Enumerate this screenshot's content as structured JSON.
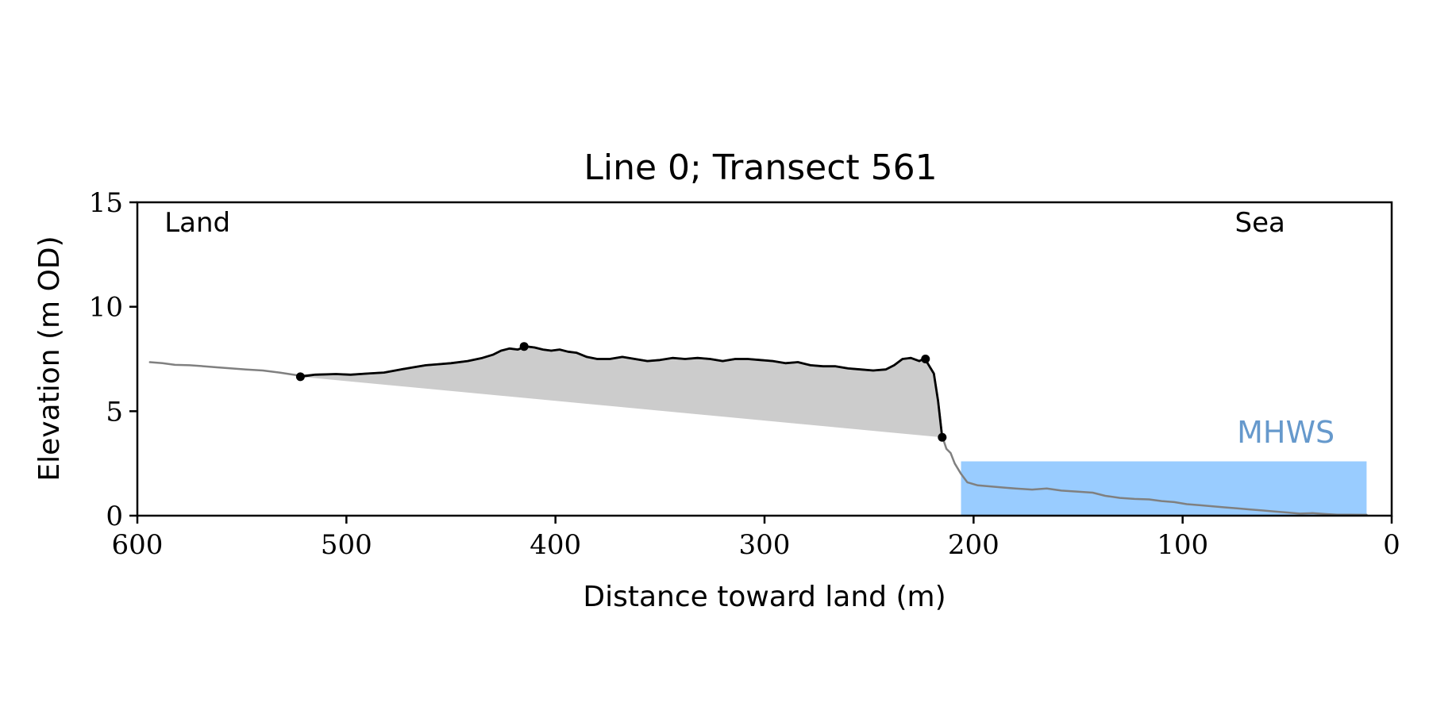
{
  "chart_data": {
    "type": "line",
    "title": "Line 0; Transect 561",
    "xlabel": "Distance toward land (m)",
    "ylabel": "Elevation (m OD)",
    "xlim": [
      600,
      0
    ],
    "ylim": [
      0,
      15
    ],
    "x_ticks": [
      600,
      500,
      400,
      300,
      200,
      100,
      0
    ],
    "y_ticks": [
      0,
      5,
      10,
      15
    ],
    "grid": false,
    "annotations": [
      {
        "text": "Land",
        "x": 587,
        "y": 13.6
      },
      {
        "text": "Sea",
        "x": 75,
        "y": 13.6
      },
      {
        "text": "MHWS",
        "x": 74,
        "y": 3.5
      }
    ],
    "mhws": {
      "label": "MHWS",
      "level": 2.6,
      "x_start": 206,
      "x_end": 12,
      "color": "#99ccff",
      "label_color": "#6699cc"
    },
    "series": [
      {
        "role": "full-profile",
        "color": "#808080",
        "x": [
          594,
          588,
          582,
          575,
          568,
          562,
          555,
          548,
          540,
          532,
          522,
          515,
          505,
          498,
          490,
          482,
          474,
          468,
          462,
          456,
          450,
          442,
          435,
          430,
          426,
          422,
          418,
          414,
          410,
          406,
          402,
          398,
          394,
          390,
          385,
          380,
          374,
          368,
          362,
          356,
          350,
          344,
          338,
          332,
          326,
          320,
          314,
          308,
          302,
          296,
          290,
          284,
          278,
          272,
          266,
          260,
          254,
          248,
          242,
          238,
          234,
          230,
          226,
          224,
          222,
          219,
          217,
          215,
          213,
          211,
          209,
          206,
          203,
          198,
          192,
          186,
          180,
          172,
          165,
          158,
          150,
          143,
          137,
          130,
          123,
          116,
          110,
          104,
          98,
          92,
          86,
          80,
          74,
          68,
          62,
          56,
          50,
          44,
          38,
          32,
          26,
          20,
          14,
          12
        ],
        "y": [
          7.35,
          7.3,
          7.22,
          7.2,
          7.15,
          7.1,
          7.05,
          7.0,
          6.95,
          6.85,
          6.7,
          6.75,
          6.78,
          6.75,
          6.8,
          6.85,
          7.0,
          7.1,
          7.2,
          7.25,
          7.3,
          7.4,
          7.55,
          7.7,
          7.9,
          8.0,
          7.95,
          8.1,
          8.05,
          7.95,
          7.9,
          7.95,
          7.85,
          7.8,
          7.6,
          7.5,
          7.5,
          7.6,
          7.5,
          7.4,
          7.45,
          7.55,
          7.5,
          7.55,
          7.5,
          7.4,
          7.5,
          7.5,
          7.45,
          7.4,
          7.3,
          7.35,
          7.2,
          7.15,
          7.15,
          7.05,
          7.0,
          6.95,
          7.0,
          7.2,
          7.5,
          7.55,
          7.4,
          7.5,
          7.3,
          6.8,
          5.5,
          3.8,
          3.2,
          3.0,
          2.5,
          2.0,
          1.6,
          1.45,
          1.4,
          1.35,
          1.3,
          1.25,
          1.3,
          1.2,
          1.15,
          1.1,
          0.95,
          0.85,
          0.8,
          0.78,
          0.7,
          0.65,
          0.55,
          0.5,
          0.45,
          0.4,
          0.35,
          0.3,
          0.25,
          0.2,
          0.15,
          0.1,
          0.12,
          0.08,
          0.05,
          0.05,
          0.04,
          0.04
        ]
      },
      {
        "role": "selected-profile",
        "color": "#000000",
        "x": [
          522,
          515,
          505,
          498,
          490,
          482,
          474,
          468,
          462,
          456,
          450,
          442,
          435,
          430,
          426,
          422,
          418,
          414,
          410,
          406,
          402,
          398,
          394,
          390,
          385,
          380,
          374,
          368,
          362,
          356,
          350,
          344,
          338,
          332,
          326,
          320,
          314,
          308,
          302,
          296,
          290,
          284,
          278,
          272,
          266,
          260,
          254,
          248,
          242,
          238,
          234,
          230,
          226,
          224,
          222,
          219,
          217,
          215
        ],
        "y": [
          6.65,
          6.75,
          6.78,
          6.75,
          6.8,
          6.85,
          7.0,
          7.1,
          7.2,
          7.25,
          7.3,
          7.4,
          7.55,
          7.7,
          7.9,
          8.0,
          7.95,
          8.1,
          8.05,
          7.95,
          7.9,
          7.95,
          7.85,
          7.8,
          7.6,
          7.5,
          7.5,
          7.6,
          7.5,
          7.4,
          7.45,
          7.55,
          7.5,
          7.55,
          7.5,
          7.4,
          7.5,
          7.5,
          7.45,
          7.4,
          7.3,
          7.35,
          7.2,
          7.15,
          7.15,
          7.05,
          7.0,
          6.95,
          7.0,
          7.2,
          7.5,
          7.55,
          7.4,
          7.5,
          7.3,
          6.8,
          5.5,
          3.75
        ]
      }
    ],
    "baseline": {
      "from": [
        522,
        6.65
      ],
      "to": [
        215,
        3.75
      ],
      "fill_color": "#cccccc"
    },
    "markers": [
      {
        "x": 522,
        "y": 6.65
      },
      {
        "x": 415,
        "y": 8.1
      },
      {
        "x": 223,
        "y": 7.5
      },
      {
        "x": 215,
        "y": 3.75
      }
    ]
  }
}
